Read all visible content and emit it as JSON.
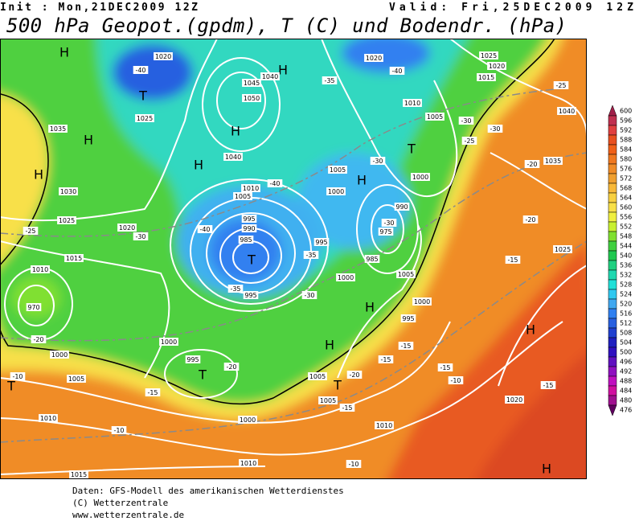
{
  "header": {
    "init": "Init : Mon,21DEC2009 12Z",
    "valid": "Valid: Fri,25DEC2009 12Z"
  },
  "title": "500 hPa Geopot.(gpdm), T (C) und Bodendr. (hPa)",
  "map_labels": [
    "H",
    "1020",
    "-40",
    "T",
    "1025",
    "H",
    "1045",
    "1050",
    "1040",
    "H",
    "1040",
    "H",
    "1010",
    "1005",
    "995",
    "990",
    "985",
    "T",
    "995",
    "-35",
    "-40",
    "H",
    "1035",
    "H",
    "1030",
    "1025",
    "1020",
    "-30",
    "1015",
    "1010",
    "970",
    "-20",
    "1000",
    "-25",
    "1000",
    "995",
    "T",
    "-20",
    "-15",
    "1005",
    "T",
    "-10",
    "1010",
    "-10",
    "1000",
    "1015",
    "1010",
    "1020",
    "-40",
    "-35",
    "1025",
    "1020",
    "1015",
    "1010",
    "1005",
    "-30",
    "-30",
    "-25",
    "T",
    "-30",
    "H",
    "1005",
    "1000",
    "1000",
    "-40",
    "990",
    "-30",
    "975",
    "995",
    "-35",
    "985",
    "1000",
    "1005",
    "H",
    "1000",
    "995",
    "H",
    "-15",
    "-15",
    "1005",
    "T",
    "-20",
    "1005",
    "-15",
    "1010",
    "-10",
    "-10",
    "-15",
    "1040",
    "1035",
    "-20",
    "-25",
    "-20",
    "1025",
    "-15",
    "-15",
    "H",
    "1020",
    "H",
    "-30"
  ],
  "colorbar": {
    "values": [
      600,
      596,
      592,
      588,
      584,
      580,
      576,
      572,
      568,
      564,
      560,
      556,
      552,
      548,
      544,
      540,
      536,
      532,
      528,
      524,
      520,
      516,
      512,
      508,
      504,
      500,
      496,
      492,
      488,
      484,
      480,
      476
    ],
    "colors": [
      "#a0204a",
      "#c03050",
      "#e04040",
      "#e85020",
      "#f06018",
      "#f07820",
      "#f08c28",
      "#f0a030",
      "#f8b838",
      "#f8d040",
      "#f8e048",
      "#f0f040",
      "#c8f030",
      "#80e030",
      "#40d040",
      "#20c850",
      "#20d080",
      "#20d8b0",
      "#20e0d8",
      "#30c8f0",
      "#40a8f0",
      "#3080f0",
      "#2860e0",
      "#2040d0",
      "#2020c0",
      "#3010c0",
      "#6010c0",
      "#9010c0",
      "#c010c0",
      "#d010a0",
      "#a01090",
      "#600060"
    ]
  },
  "footer": [
    "Daten: GFS-Modell des amerikanischen Wetterdienstes",
    "(C) Wetterzentrale",
    "www.wetterzentrale.de"
  ]
}
